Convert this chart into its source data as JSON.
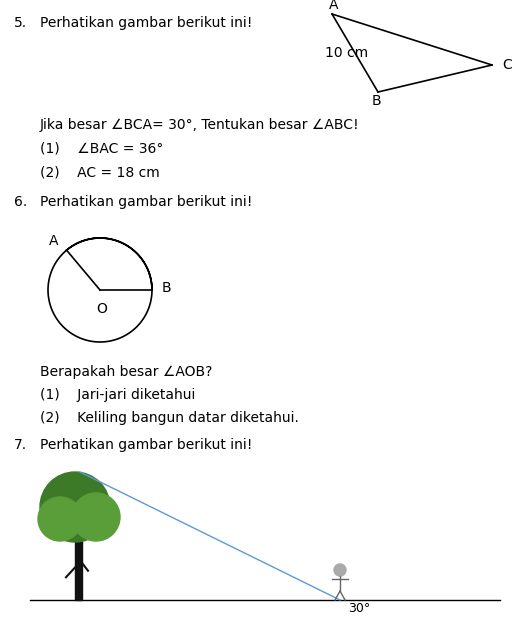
{
  "bg_color": "#ffffff",
  "text_color": "#000000",
  "body_fontsize": 10.0,
  "small_fontsize": 9.0,
  "q5_number": "5.",
  "q5_text": "Perhatikan gambar berikut ini!",
  "q5_condition": "Jika besar ∠BCA= 30°, Tentukan besar ∠ABC!",
  "q5_sub1": "(1)    ∠BAC = 36°",
  "q5_sub2": "(2)    AC = 18 cm",
  "q6_number": "6.",
  "q6_text": "Perhatikan gambar berikut ini!",
  "q6_condition": "Berapakah besar ∠AOB?",
  "q6_sub1": "(1)    Jari-jari diketahui",
  "q6_sub2": "(2)    Keliling bangun datar diketahui.",
  "q7_number": "7.",
  "q7_text": "Perhatikan gambar berikut ini!",
  "angle_label": "30°",
  "line_color": "#000000",
  "line_width": 1.2,
  "line_color_blue": "#5b9bd5",
  "tree_foliage_color1": "#3d7a28",
  "tree_foliage_color2": "#5a9e3a",
  "tree_trunk_color": "#111111"
}
